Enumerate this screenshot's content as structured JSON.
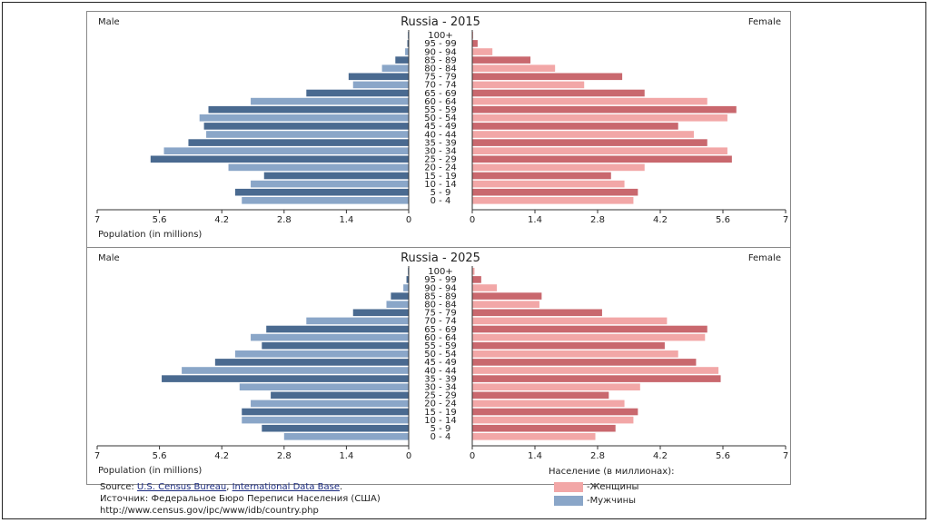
{
  "chart_data": [
    {
      "type": "bar",
      "title": "Russia - 2015",
      "left_label": "Male",
      "right_label": "Female",
      "xlabel": "Population (in millions)",
      "xlim": [
        0,
        7
      ],
      "x_ticks": [
        "7",
        "5.6",
        "4.2",
        "2.8",
        "1.4",
        "0"
      ],
      "x_ticks_right": [
        "0",
        "1.4",
        "2.8",
        "4.2",
        "5.6",
        "7"
      ],
      "categories": [
        "100+",
        "95 - 99",
        "90 - 94",
        "85 - 89",
        "80 - 84",
        "75 - 79",
        "70 - 74",
        "65 - 69",
        "60 - 64",
        "55 - 59",
        "50 - 54",
        "45 - 49",
        "40 - 44",
        "35 - 39",
        "30 - 34",
        "25 - 29",
        "20 - 24",
        "15 - 19",
        "10 - 14",
        "5 - 9",
        "0 - 4"
      ],
      "series": [
        {
          "name": "Male",
          "values": [
            0.02,
            0.03,
            0.08,
            0.3,
            0.6,
            1.35,
            1.25,
            2.3,
            3.55,
            4.5,
            4.7,
            4.6,
            4.55,
            4.95,
            5.5,
            5.8,
            4.05,
            3.25,
            3.55,
            3.9,
            3.75
          ]
        },
        {
          "name": "Female",
          "values": [
            0.02,
            0.12,
            0.45,
            1.3,
            1.85,
            3.35,
            2.5,
            3.85,
            5.25,
            5.9,
            5.7,
            4.6,
            4.95,
            5.25,
            5.7,
            5.8,
            3.85,
            3.1,
            3.4,
            3.7,
            3.6
          ]
        }
      ]
    },
    {
      "type": "bar",
      "title": "Russia - 2025",
      "left_label": "Male",
      "right_label": "Female",
      "xlabel": "Population (in millions)",
      "xlim": [
        0,
        7
      ],
      "x_ticks": [
        "7",
        "5.6",
        "4.2",
        "2.8",
        "1.4",
        "0"
      ],
      "x_ticks_right": [
        "0",
        "1.4",
        "2.8",
        "4.2",
        "5.6",
        "7"
      ],
      "categories": [
        "100+",
        "95 - 99",
        "90 - 94",
        "85 - 89",
        "80 - 84",
        "75 - 79",
        "70 - 74",
        "65 - 69",
        "60 - 64",
        "55 - 59",
        "50 - 54",
        "45 - 49",
        "40 - 44",
        "35 - 39",
        "30 - 34",
        "25 - 29",
        "20 - 24",
        "15 - 19",
        "10 - 14",
        "5 - 9",
        "0 - 4"
      ],
      "series": [
        {
          "name": "Male",
          "values": [
            0.02,
            0.05,
            0.12,
            0.4,
            0.5,
            1.25,
            2.3,
            3.2,
            3.55,
            3.3,
            3.9,
            4.35,
            5.1,
            5.55,
            3.8,
            3.1,
            3.55,
            3.75,
            3.75,
            3.3,
            2.8
          ]
        },
        {
          "name": "Female",
          "values": [
            0.05,
            0.2,
            0.55,
            1.55,
            1.5,
            2.9,
            4.35,
            5.25,
            5.2,
            4.3,
            4.6,
            5.0,
            5.5,
            5.55,
            3.75,
            3.05,
            3.4,
            3.7,
            3.6,
            3.2,
            2.75
          ]
        }
      ]
    }
  ],
  "legend": {
    "title": "Население (в миллионах):",
    "female": "-Женщины",
    "male": "-Мужчины",
    "female_color": "#f2a7a7",
    "male_color": "#8aa6c8"
  },
  "source": {
    "prefix": "Source: ",
    "link1": "U.S. Census Bureau",
    "sep": ", ",
    "link2": "International Data Base",
    "suffix": ".",
    "line2": "Источник: Федеральное Бюро Переписи Населения (США)",
    "line3": "http://www.census.gov/ipc/www/idb/country.php"
  },
  "colors": {
    "male_light": "#8aa6c8",
    "male_dark": "#4a6a90",
    "female_light": "#f2a7a7",
    "female_dark": "#c9686e"
  }
}
